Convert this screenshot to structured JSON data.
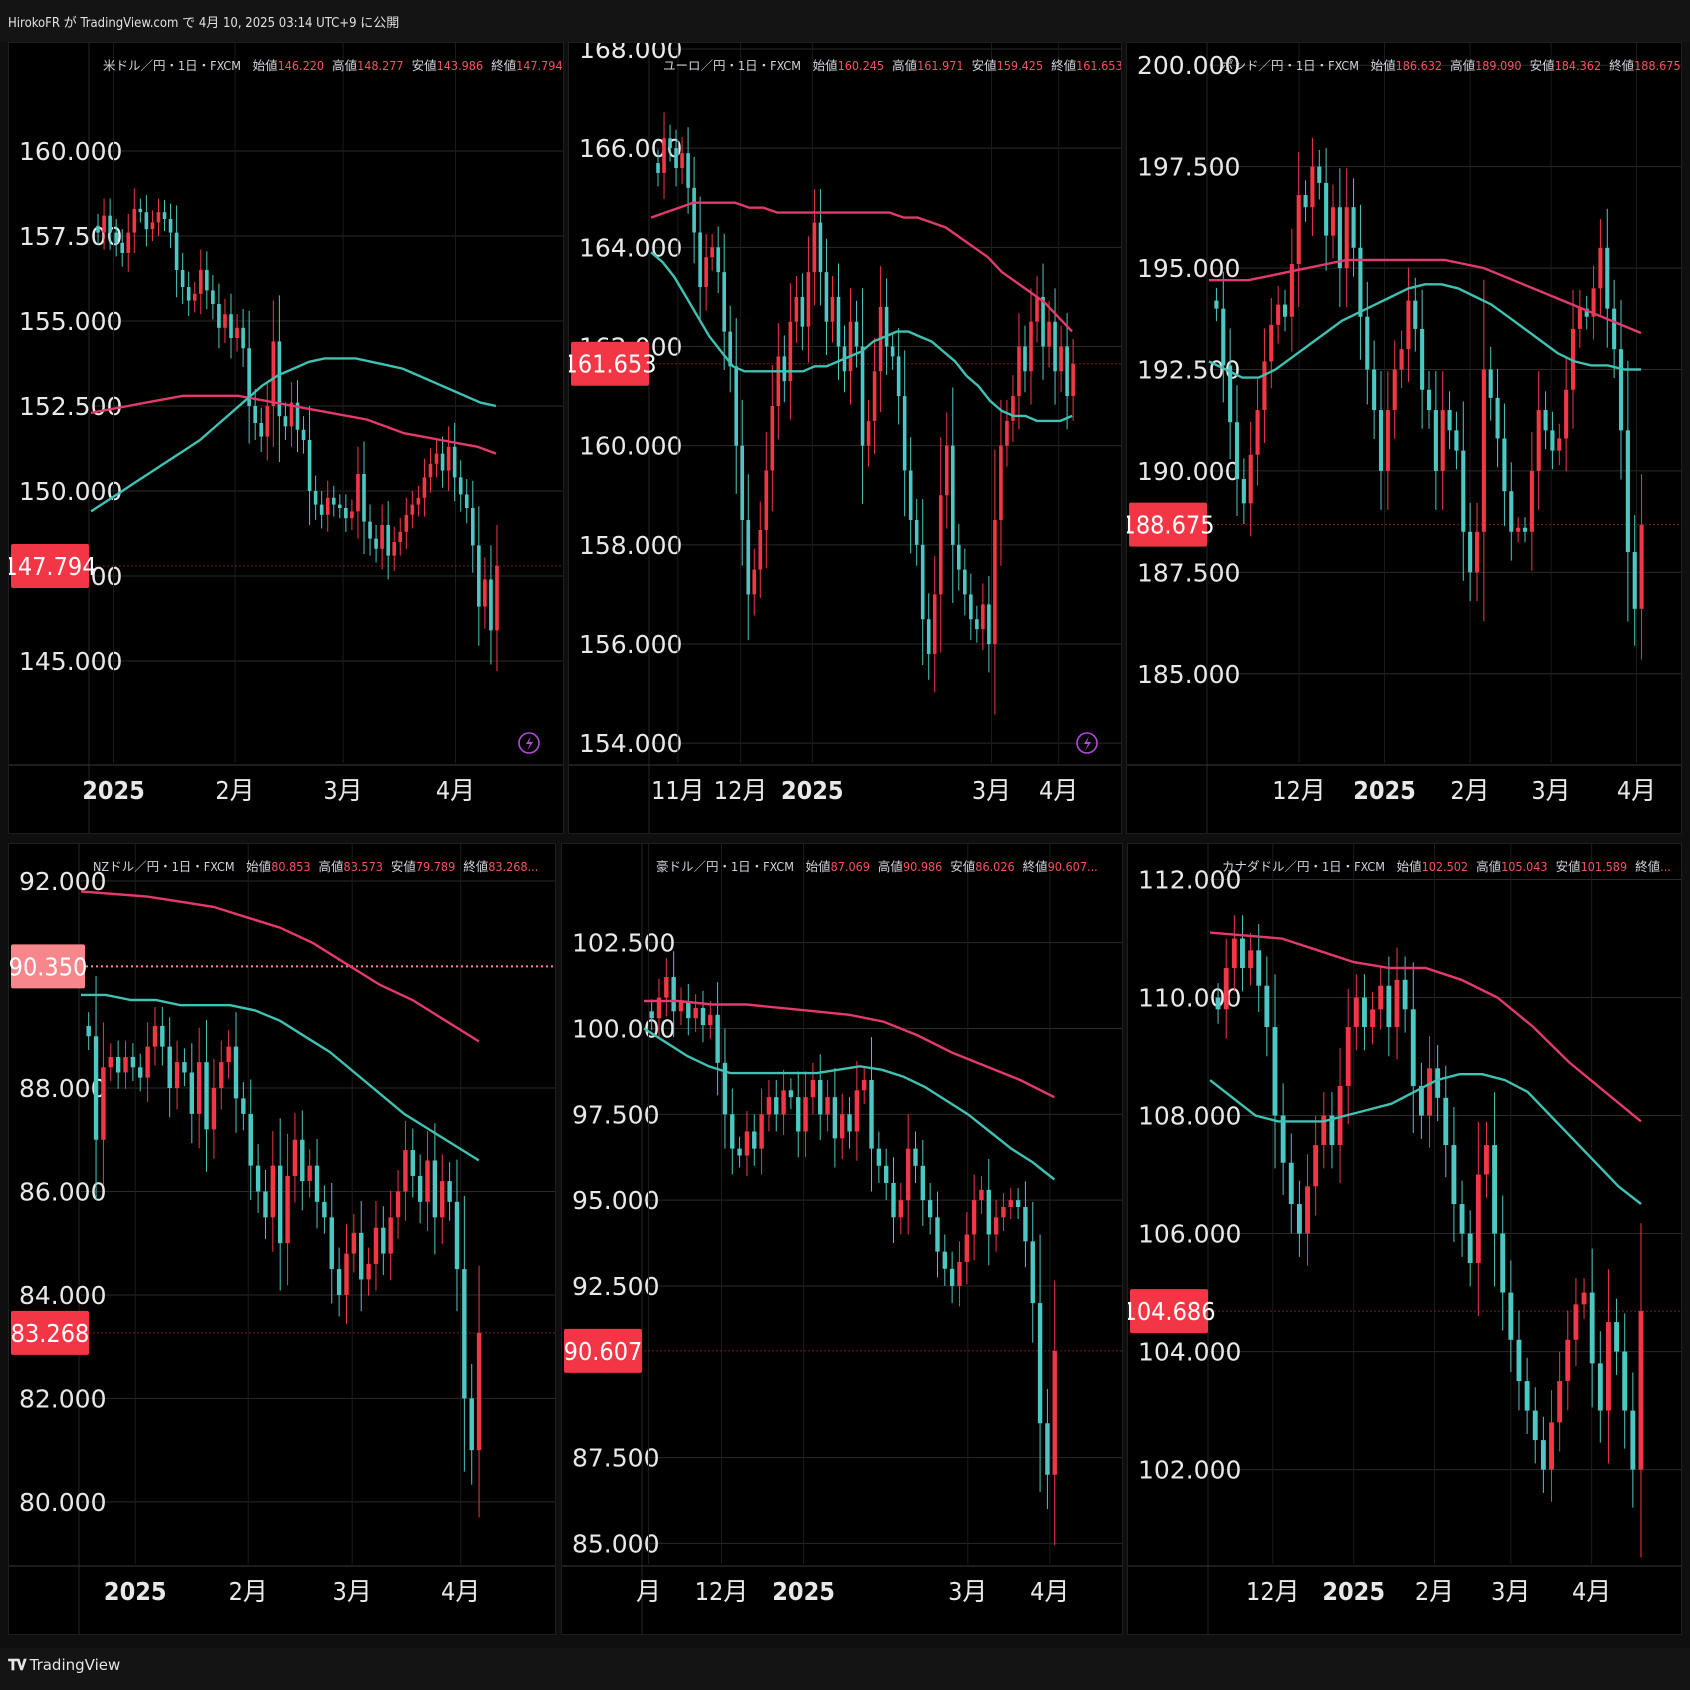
{
  "header": {
    "text": "HirokoFR が TradingView.com で 4月 10, 2025 03:14 UTC+9 に公開"
  },
  "footer": {
    "logo_text": "TradingView"
  },
  "colors": {
    "up": "#f23645",
    "down": "#4dc7c1",
    "ma_fast": "#3fc1b3",
    "ma_slow": "#e23a6e",
    "price_tag": "#f23645",
    "price_tag_light": "#f7868d",
    "grid": "#2a2a2a",
    "text": "#d1d4dc"
  },
  "panels": [
    {
      "legend": {
        "symbol": "米ドル／円・1日・FXCM",
        "open_label": "始値",
        "open": "146.220",
        "high_label": "高値",
        "high": "148.277",
        "low_label": "安値",
        "low": "143.986",
        "close_label": "終値",
        "close": "147.794..."
      },
      "price_label": "147.794",
      "has_flash_icon": true,
      "chart_data": {
        "type": "candlestick",
        "ylim": [
          142.0,
          163.0
        ],
        "y_ticks": [
          "145.000",
          "147.500",
          "150.000",
          "152.500",
          "155.000",
          "157.500",
          "160.000"
        ],
        "x_ticks": [
          "2025",
          "2月",
          "3月",
          "4月"
        ],
        "x_tick_pos": [
          0.05,
          0.32,
          0.56,
          0.81
        ],
        "price_line": 147.794,
        "closes": [
          157.6,
          158.1,
          157.6,
          157.3,
          157.0,
          157.6,
          158.3,
          158.2,
          157.7,
          157.9,
          158.2,
          158.0,
          157.6,
          156.5,
          156.0,
          155.6,
          155.8,
          156.5,
          155.9,
          155.5,
          154.8,
          155.2,
          154.5,
          154.8,
          154.2,
          152.5,
          152.0,
          151.6,
          152.5,
          154.4,
          152.2,
          151.9,
          152.6,
          151.8,
          151.5,
          150.0,
          149.6,
          149.3,
          149.8,
          149.6,
          149.5,
          149.2,
          149.4,
          150.5,
          149.1,
          148.6,
          148.3,
          149.0,
          148.1,
          148.5,
          148.8,
          149.3,
          149.6,
          149.8,
          150.4,
          150.8,
          151.1,
          150.6,
          151.3,
          150.4,
          149.9,
          149.5,
          148.4,
          146.6,
          147.4,
          145.9,
          147.8
        ],
        "ma_fast": [
          149.4,
          149.7,
          150.0,
          150.3,
          150.6,
          150.9,
          151.2,
          151.5,
          151.9,
          152.3,
          152.7,
          153.1,
          153.4,
          153.6,
          153.8,
          153.9,
          153.9,
          153.9,
          153.8,
          153.7,
          153.6,
          153.4,
          153.2,
          153.0,
          152.8,
          152.6,
          152.5
        ],
        "ma_slow": [
          152.3,
          152.4,
          152.5,
          152.6,
          152.7,
          152.8,
          152.8,
          152.8,
          152.8,
          152.7,
          152.6,
          152.5,
          152.4,
          152.3,
          152.2,
          152.1,
          151.9,
          151.7,
          151.6,
          151.5,
          151.4,
          151.3,
          151.1
        ]
      }
    },
    {
      "legend": {
        "symbol": "ユーロ／円・1日・FXCM",
        "open_label": "始値",
        "open": "160.245",
        "high_label": "高値",
        "high": "161.971",
        "low_label": "安値",
        "low": "159.425",
        "close_label": "終値",
        "close": "161.653..."
      },
      "price_label": "161.653",
      "has_flash_icon": true,
      "chart_data": {
        "type": "candlestick",
        "ylim": [
          153.6,
          168.0
        ],
        "y_ticks": [
          "154.000",
          "156.000",
          "158.000",
          "160.000",
          "162.000",
          "164.000",
          "166.000",
          "168.000"
        ],
        "x_ticks": [
          "11月",
          "12月",
          "2025",
          "3月",
          "4月"
        ],
        "x_tick_pos": [
          0.06,
          0.2,
          0.36,
          0.76,
          0.91
        ],
        "price_line": 161.653,
        "closes": [
          165.5,
          166.2,
          166.0,
          165.6,
          165.9,
          165.2,
          164.3,
          163.2,
          163.8,
          164.0,
          163.5,
          162.3,
          161.6,
          160.0,
          158.5,
          157.0,
          157.5,
          158.3,
          159.5,
          160.8,
          161.8,
          161.3,
          162.5,
          163.0,
          162.4,
          163.5,
          164.5,
          163.5,
          162.5,
          163.0,
          162.0,
          161.5,
          162.5,
          162.0,
          160.0,
          160.5,
          161.5,
          162.8,
          162.0,
          161.8,
          161.0,
          159.5,
          158.5,
          158.0,
          156.5,
          155.8,
          157.0,
          159.0,
          160.0,
          158.0,
          157.5,
          157.0,
          156.5,
          156.3,
          156.8,
          156.0,
          158.5,
          160.0,
          160.5,
          161.0,
          162.0,
          161.5,
          162.5,
          163.0,
          162.0,
          162.5,
          161.5,
          162.0,
          161.0,
          161.653
        ],
        "ma_fast": [
          163.9,
          163.7,
          163.4,
          163.0,
          162.6,
          162.2,
          161.9,
          161.6,
          161.5,
          161.5,
          161.5,
          161.5,
          161.5,
          161.5,
          161.6,
          161.6,
          161.7,
          161.8,
          161.9,
          162.1,
          162.2,
          162.3,
          162.3,
          162.2,
          162.1,
          161.9,
          161.7,
          161.4,
          161.2,
          160.9,
          160.7,
          160.6,
          160.6,
          160.5,
          160.5,
          160.5,
          160.6
        ],
        "ma_slow": [
          164.6,
          164.7,
          164.8,
          164.9,
          164.9,
          164.9,
          164.9,
          164.8,
          164.8,
          164.7,
          164.7,
          164.7,
          164.7,
          164.7,
          164.7,
          164.7,
          164.7,
          164.7,
          164.6,
          164.6,
          164.5,
          164.4,
          164.2,
          164.0,
          163.8,
          163.5,
          163.3,
          163.1,
          162.9,
          162.6,
          162.3
        ]
      }
    },
    {
      "legend": {
        "symbol": "ポンド／円・1日・FXCM",
        "open_label": "始値",
        "open": "186.632",
        "high_label": "高値",
        "high": "189.090",
        "low_label": "安値",
        "low": "184.362",
        "close_label": "終値",
        "close": "188.675..."
      },
      "price_label": "188.675",
      "has_flash_icon": false,
      "chart_data": {
        "type": "candlestick",
        "ylim": [
          182.8,
          200.4
        ],
        "y_ticks": [
          "185.000",
          "187.500",
          "190.000",
          "192.500",
          "195.000",
          "197.500",
          "200.000"
        ],
        "x_ticks": [
          "12月",
          "2025",
          "2月",
          "3月",
          "4月"
        ],
        "x_tick_pos": [
          0.2,
          0.39,
          0.58,
          0.76,
          0.95
        ],
        "price_line": 188.675,
        "closes": [
          194.0,
          192.6,
          191.2,
          189.8,
          189.2,
          190.4,
          191.5,
          192.7,
          193.6,
          194.1,
          193.8,
          195.1,
          196.8,
          196.5,
          197.5,
          197.1,
          195.8,
          196.5,
          195.0,
          196.5,
          195.5,
          193.8,
          192.5,
          191.5,
          190.0,
          191.5,
          192.5,
          193.0,
          194.2,
          193.5,
          192.0,
          191.5,
          190.0,
          191.5,
          191.0,
          190.5,
          188.5,
          187.5,
          188.5,
          192.5,
          191.8,
          190.8,
          189.5,
          188.5,
          188.6,
          188.5,
          190.0,
          191.5,
          191.0,
          190.5,
          190.8,
          192.0,
          193.5,
          194.0,
          193.8,
          194.5,
          195.5,
          194.0,
          193.0,
          191.0,
          188.0,
          186.6,
          188.675
        ],
        "ma_fast": [
          192.7,
          192.5,
          192.3,
          192.3,
          192.5,
          192.8,
          193.1,
          193.4,
          193.7,
          193.9,
          194.1,
          194.3,
          194.5,
          194.6,
          194.6,
          194.5,
          194.3,
          194.1,
          193.8,
          193.5,
          193.2,
          192.9,
          192.7,
          192.6,
          192.6,
          192.5,
          192.5
        ],
        "ma_slow": [
          194.7,
          194.7,
          194.7,
          194.8,
          194.9,
          195.0,
          195.1,
          195.2,
          195.2,
          195.2,
          195.2,
          195.2,
          195.2,
          195.1,
          195.0,
          194.8,
          194.6,
          194.4,
          194.2,
          194.0,
          193.8,
          193.6,
          193.4
        ]
      }
    },
    {
      "legend": {
        "symbol": "NZドル／円・1日・FXCM",
        "open_label": "始値",
        "open": "80.853",
        "high_label": "高値",
        "high": "83.573",
        "low_label": "安値",
        "low": "79.789",
        "close_label": "終値",
        "close": "83.268..."
      },
      "price_label": "83.268",
      "second_label": "90.350",
      "has_flash_icon": false,
      "chart_data": {
        "type": "candlestick",
        "ylim": [
          78.8,
          92.6
        ],
        "y_ticks": [
          "80.000",
          "82.000",
          "84.000",
          "86.000",
          "88.000",
          "92.000"
        ],
        "x_ticks": [
          "2025",
          "2月",
          "3月",
          "4月"
        ],
        "x_tick_pos": [
          0.12,
          0.37,
          0.6,
          0.84
        ],
        "price_line": 83.268,
        "dotted_line": 90.35,
        "closes": [
          89.0,
          87.0,
          88.4,
          88.6,
          88.3,
          88.6,
          88.4,
          88.2,
          88.8,
          89.2,
          88.8,
          88.0,
          88.5,
          88.3,
          87.5,
          88.5,
          87.2,
          88.0,
          88.5,
          88.8,
          87.8,
          87.5,
          86.5,
          86.0,
          85.5,
          86.5,
          85.0,
          86.3,
          87.0,
          86.2,
          86.5,
          85.8,
          85.5,
          84.5,
          84.0,
          84.8,
          85.2,
          84.3,
          84.6,
          85.3,
          84.8,
          85.5,
          86.0,
          86.8,
          86.3,
          85.8,
          86.6,
          85.5,
          86.2,
          85.8,
          84.5,
          82.0,
          81.0,
          83.268
        ],
        "ma_fast": [
          89.8,
          89.8,
          89.7,
          89.7,
          89.6,
          89.6,
          89.6,
          89.5,
          89.3,
          89.0,
          88.7,
          88.3,
          87.9,
          87.5,
          87.2,
          86.9,
          86.6
        ],
        "ma_slow": [
          91.8,
          91.75,
          91.7,
          91.6,
          91.5,
          91.3,
          91.1,
          90.8,
          90.4,
          90.0,
          89.7,
          89.3,
          88.9
        ]
      }
    },
    {
      "legend": {
        "symbol": "豪ドル／円・1日・FXCM",
        "open_label": "始値",
        "open": "87.069",
        "high_label": "高値",
        "high": "90.986",
        "low_label": "安値",
        "low": "86.026",
        "close_label": "終値",
        "close": "90.607..."
      },
      "price_label": "90.607",
      "has_flash_icon": false,
      "chart_data": {
        "type": "candlestick",
        "ylim": [
          84.4,
          105.2
        ],
        "y_ticks": [
          "85.000",
          "87.500",
          "92.500",
          "95.000",
          "97.500",
          "100.000",
          "102.500"
        ],
        "x_ticks": [
          "月",
          "12月",
          "2025",
          "3月",
          "4月"
        ],
        "x_tick_pos": [
          0.01,
          0.17,
          0.35,
          0.71,
          0.89
        ],
        "price_line": 90.607,
        "closes": [
          100.3,
          100.9,
          101.5,
          100.5,
          100.8,
          100.3,
          100.6,
          100.1,
          100.4,
          99.0,
          97.5,
          96.5,
          96.3,
          97.0,
          96.5,
          97.5,
          98.0,
          97.5,
          98.2,
          98.0,
          97.0,
          98.0,
          98.5,
          97.5,
          98.0,
          96.8,
          97.5,
          97.0,
          98.2,
          98.5,
          96.5,
          96.0,
          95.5,
          94.5,
          95.0,
          96.5,
          96.0,
          95.0,
          94.5,
          93.5,
          93.0,
          92.5,
          93.2,
          94.0,
          95.0,
          95.3,
          94.0,
          94.5,
          94.8,
          95.0,
          94.8,
          93.8,
          92.0,
          88.5,
          87.0,
          90.607
        ],
        "ma_fast": [
          100.0,
          99.6,
          99.2,
          98.9,
          98.7,
          98.7,
          98.7,
          98.7,
          98.7,
          98.8,
          98.9,
          98.8,
          98.6,
          98.3,
          97.9,
          97.5,
          97.0,
          96.5,
          96.1,
          95.6
        ],
        "ma_slow": [
          100.8,
          100.8,
          100.7,
          100.7,
          100.6,
          100.5,
          100.4,
          100.2,
          99.8,
          99.3,
          98.9,
          98.5,
          98.0
        ]
      }
    },
    {
      "legend": {
        "symbol": "カナダドル／円・1日・FXCM",
        "open_label": "始値",
        "open": "102.502",
        "high_label": "高値",
        "high": "105.043",
        "low_label": "安値",
        "low": "101.589",
        "close_label": "終値",
        "close": "..."
      },
      "price_label": "104.686",
      "has_flash_icon": false,
      "chart_data": {
        "type": "candlestick",
        "ylim": [
          100.4,
          112.5
        ],
        "y_ticks": [
          "102.000",
          "104.000",
          "106.000",
          "108.000",
          "110.000",
          "112.000"
        ],
        "x_ticks": [
          "12月",
          "2025",
          "2月",
          "3月",
          "4月"
        ],
        "x_tick_pos": [
          0.14,
          0.32,
          0.5,
          0.67,
          0.85
        ],
        "price_line": 104.686,
        "closes": [
          109.8,
          110.5,
          111.0,
          110.5,
          110.8,
          110.2,
          109.5,
          108.0,
          107.2,
          106.5,
          106.0,
          106.8,
          107.5,
          108.0,
          107.5,
          108.5,
          109.5,
          110.0,
          109.5,
          109.8,
          110.2,
          109.5,
          110.3,
          109.8,
          108.5,
          108.0,
          108.8,
          108.3,
          107.5,
          106.5,
          106.0,
          105.5,
          107.0,
          107.5,
          106.0,
          105.0,
          104.2,
          103.5,
          103.0,
          102.5,
          102.0,
          102.8,
          103.5,
          104.2,
          104.8,
          105.0,
          103.8,
          103.0,
          104.5,
          104.0,
          103.0,
          102.0,
          104.686
        ],
        "ma_fast": [
          108.6,
          108.3,
          108.0,
          107.9,
          107.9,
          107.9,
          108.0,
          108.1,
          108.2,
          108.4,
          108.6,
          108.7,
          108.7,
          108.6,
          108.4,
          108.0,
          107.6,
          107.2,
          106.8,
          106.5
        ],
        "ma_slow": [
          111.1,
          111.05,
          111.0,
          110.8,
          110.6,
          110.5,
          110.5,
          110.3,
          110.0,
          109.5,
          108.9,
          108.4,
          107.9
        ]
      }
    }
  ]
}
